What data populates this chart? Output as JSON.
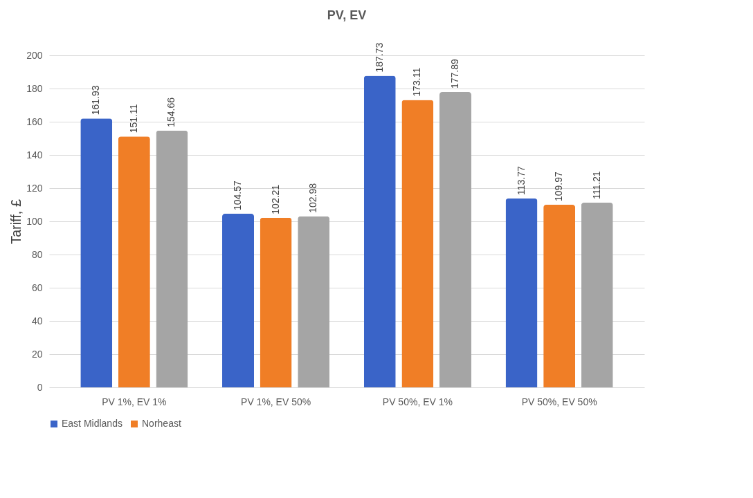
{
  "chart_data": {
    "type": "bar",
    "title": "PV, EV",
    "ylabel": "Tariff, £",
    "categories": [
      "PV 1%, EV 1%",
      "PV 1%, EV 50%",
      "PV 50%, EV 1%",
      "PV 50%, EV 50%"
    ],
    "series": [
      {
        "name": "East Midlands",
        "color": "#3a64c8",
        "values": [
          161.93,
          104.57,
          187.73,
          113.77
        ]
      },
      {
        "name": "Norheast",
        "color": "#f07e26",
        "values": [
          151.11,
          102.21,
          173.11,
          109.97
        ]
      },
      {
        "color": "#a5a5a5",
        "values": [
          154.66,
          102.98,
          177.89,
          111.21
        ]
      }
    ],
    "ylim": [
      0,
      200
    ],
    "yticks": [
      0,
      20,
      40,
      60,
      80,
      100,
      120,
      140,
      160,
      180,
      200
    ],
    "grid": "y",
    "legend": "bottom",
    "data_labels": true
  }
}
